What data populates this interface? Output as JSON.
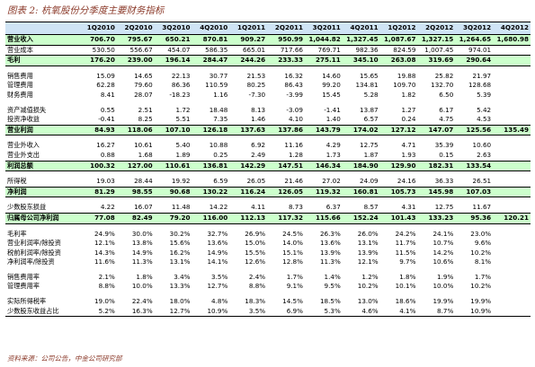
{
  "header": {
    "title": "图表 2: 杭氧股份分季度主要财务指标"
  },
  "table": {
    "columns": [
      "1Q2010",
      "2Q2010",
      "3Q2010",
      "4Q2010",
      "1Q2011",
      "2Q2011",
      "3Q2011",
      "4Q2011",
      "1Q2012",
      "2Q2012",
      "3Q2012",
      "4Q2012"
    ],
    "groups": [
      [
        {
          "label": "营业收入",
          "highlight": true,
          "values": [
            "706.70",
            "795.67",
            "650.21",
            "870.81",
            "909.27",
            "950.99",
            "1,044.82",
            "1,327.45",
            "1,087.67",
            "1,327.15",
            "1,264.65",
            "1,680.98"
          ]
        },
        {
          "label": "营业成本",
          "values": [
            "530.50",
            "556.67",
            "454.07",
            "586.35",
            "665.01",
            "717.66",
            "769.71",
            "982.36",
            "824.59",
            "1,007.45",
            "974.01",
            null
          ]
        },
        {
          "label": "毛利",
          "highlight": true,
          "values": [
            "176.20",
            "239.00",
            "196.14",
            "284.47",
            "244.26",
            "233.33",
            "275.11",
            "345.10",
            "263.08",
            "319.69",
            "290.64",
            null
          ]
        }
      ],
      [
        {
          "label": "销售费用",
          "values": [
            "15.09",
            "14.65",
            "22.13",
            "30.77",
            "21.53",
            "16.32",
            "14.60",
            "15.65",
            "19.88",
            "25.82",
            "21.97",
            null
          ]
        },
        {
          "label": "管理费用",
          "values": [
            "62.28",
            "79.60",
            "86.36",
            "110.59",
            "80.25",
            "86.43",
            "99.20",
            "134.81",
            "109.70",
            "132.70",
            "128.68",
            null
          ]
        },
        {
          "label": "财务费用",
          "values": [
            "8.41",
            "28.07",
            "-18.23",
            "1.16",
            "-7.30",
            "-3.99",
            "15.45",
            "5.28",
            "1.82",
            "6.50",
            "5.39",
            null
          ]
        }
      ],
      [
        {
          "label": "资产减值损失",
          "values": [
            "0.55",
            "2.51",
            "1.72",
            "18.48",
            "8.13",
            "-3.09",
            "-1.41",
            "13.87",
            "1.27",
            "6.17",
            "5.42",
            null
          ]
        },
        {
          "label": "投资净收益",
          "values": [
            "-0.41",
            "8.25",
            "5.51",
            "7.35",
            "1.46",
            "4.10",
            "1.40",
            "6.57",
            "0.24",
            "4.75",
            "4.53",
            null
          ]
        },
        {
          "label": "营业利润",
          "highlight": true,
          "values": [
            "84.93",
            "118.06",
            "107.10",
            "126.18",
            "137.63",
            "137.86",
            "143.79",
            "174.02",
            "127.12",
            "147.07",
            "125.56",
            "135.49"
          ]
        }
      ],
      [
        {
          "label": "营业外收入",
          "values": [
            "16.27",
            "10.61",
            "5.40",
            "10.88",
            "6.92",
            "11.16",
            "4.29",
            "12.75",
            "4.71",
            "35.39",
            "10.60",
            null
          ]
        },
        {
          "label": "营业外支出",
          "values": [
            "0.88",
            "1.68",
            "1.89",
            "0.25",
            "2.49",
            "1.28",
            "1.73",
            "1.87",
            "1.93",
            "0.15",
            "2.63",
            null
          ]
        },
        {
          "label": "利润总额",
          "highlight": true,
          "values": [
            "100.32",
            "127.00",
            "110.61",
            "136.81",
            "142.29",
            "147.51",
            "146.34",
            "184.90",
            "129.90",
            "182.31",
            "133.54",
            null
          ]
        }
      ],
      [
        {
          "label": "所得税",
          "values": [
            "19.03",
            "28.44",
            "19.92",
            "6.59",
            "26.05",
            "21.46",
            "27.02",
            "24.09",
            "24.16",
            "36.33",
            "26.51",
            null
          ]
        },
        {
          "label": "净利润",
          "highlight": true,
          "values": [
            "81.29",
            "98.55",
            "90.68",
            "130.22",
            "116.24",
            "126.05",
            "119.32",
            "160.81",
            "105.73",
            "145.98",
            "107.03",
            null
          ]
        }
      ],
      [
        {
          "label": "少数股东损益",
          "values": [
            "4.22",
            "16.07",
            "11.48",
            "14.22",
            "4.11",
            "8.73",
            "6.37",
            "8.57",
            "4.31",
            "12.75",
            "11.67",
            null
          ]
        },
        {
          "label": "归属母公司净利润",
          "highlight": true,
          "values": [
            "77.08",
            "82.49",
            "79.20",
            "116.00",
            "112.13",
            "117.32",
            "115.66",
            "152.24",
            "101.43",
            "133.23",
            "95.36",
            "120.21"
          ]
        }
      ],
      [
        {
          "label": "毛利率",
          "values": [
            "24.9%",
            "30.0%",
            "30.2%",
            "32.7%",
            "26.9%",
            "24.5%",
            "26.3%",
            "26.0%",
            "24.2%",
            "24.1%",
            "23.0%",
            null
          ]
        },
        {
          "label": "营业利润率/除投资",
          "values": [
            "12.1%",
            "13.8%",
            "15.6%",
            "13.6%",
            "15.0%",
            "14.0%",
            "13.6%",
            "13.1%",
            "11.7%",
            "10.7%",
            "9.6%",
            null
          ]
        },
        {
          "label": "税前利润率/除投资",
          "values": [
            "14.3%",
            "14.9%",
            "16.2%",
            "14.9%",
            "15.5%",
            "15.1%",
            "13.9%",
            "13.9%",
            "11.5%",
            "14.2%",
            "10.2%",
            null
          ]
        },
        {
          "label": "净利润率/除投资",
          "values": [
            "11.6%",
            "11.3%",
            "13.1%",
            "14.1%",
            "12.6%",
            "12.8%",
            "11.3%",
            "12.1%",
            "9.7%",
            "10.6%",
            "8.1%",
            null
          ]
        }
      ],
      [
        {
          "label": "销售费用率",
          "values": [
            "2.1%",
            "1.8%",
            "3.4%",
            "3.5%",
            "2.4%",
            "1.7%",
            "1.4%",
            "1.2%",
            "1.8%",
            "1.9%",
            "1.7%",
            null
          ]
        },
        {
          "label": "管理费用率",
          "values": [
            "8.8%",
            "10.0%",
            "13.3%",
            "12.7%",
            "8.8%",
            "9.1%",
            "9.5%",
            "10.2%",
            "10.1%",
            "10.0%",
            "10.2%",
            null
          ]
        }
      ],
      [
        {
          "label": "实际所得税率",
          "values": [
            "19.0%",
            "22.4%",
            "18.0%",
            "4.8%",
            "18.3%",
            "14.5%",
            "18.5%",
            "13.0%",
            "18.6%",
            "19.9%",
            "19.9%",
            null
          ]
        },
        {
          "label": "少数股东收益占比",
          "values": [
            "5.2%",
            "16.3%",
            "12.7%",
            "10.9%",
            "3.5%",
            "6.9%",
            "5.3%",
            "4.6%",
            "4.1%",
            "8.7%",
            "10.9%",
            null
          ]
        }
      ]
    ]
  },
  "footer": {
    "source": "资料来源：公司公告，中金公司研究部"
  }
}
